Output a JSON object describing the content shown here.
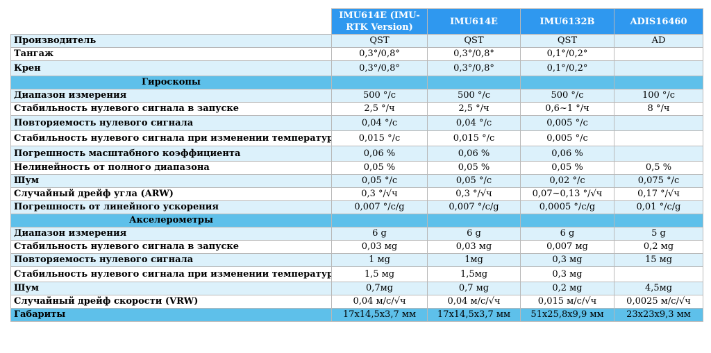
{
  "header": [
    "IMU614E (IMU-RTK Version)",
    "IMU614E",
    "IMU6132B",
    "ADIS16460"
  ],
  "rows": [
    {
      "label": "Производитель",
      "values": [
        "QST",
        "QST",
        "QST",
        "AD"
      ],
      "style": "odd",
      "h": "h20"
    },
    {
      "label": "Тангаж",
      "values": [
        "0,3°/0,8°",
        "0,3°/0,8°",
        "0,1°/0,2°",
        ""
      ],
      "style": "even",
      "h": "h20"
    },
    {
      "label": "Крен",
      "values": [
        "0,3°/0,8°",
        "0,3°/0,8°",
        "0,1°/0,2°",
        ""
      ],
      "style": "odd",
      "h": "h24"
    },
    {
      "label": "Гироскопы",
      "values": [
        "",
        "",
        "",
        ""
      ],
      "style": "section",
      "h": "h20"
    },
    {
      "label": "Диапазон измерения",
      "values": [
        "500 °/с",
        "500 °/с",
        "500 °/с",
        "100 °/с"
      ],
      "style": "odd",
      "h": "h20"
    },
    {
      "label": "Стабильность нулевого сигнала в запуске",
      "values": [
        "2,5 °/ч",
        "2,5 °/ч",
        "0,6~1 °/ч",
        "8 °/ч"
      ],
      "style": "even",
      "h": "h20"
    },
    {
      "label": "Повторяемость нулевого сигнала",
      "values": [
        "0,04 °/с",
        "0,04 °/с",
        "0,005 °/с",
        ""
      ],
      "style": "odd",
      "h": "h24"
    },
    {
      "label": "Стабильность нулевого сигнала при изменении температуры",
      "values": [
        "0,015 °/с",
        "0,015 °/с",
        "0,005 °/с",
        ""
      ],
      "style": "even",
      "h": "h24"
    },
    {
      "label": "Погрешность масштабного коэффициента",
      "values": [
        "0,06 %",
        "0,06 %",
        "0,06 %",
        ""
      ],
      "style": "odd",
      "h": "h24"
    },
    {
      "label": "Нелинейность от полного диапазона",
      "values": [
        "0,05 %",
        "0,05 %",
        "0,05 %",
        "0,5 %"
      ],
      "style": "even",
      "h": "h20"
    },
    {
      "label": "Шум",
      "values": [
        "0,05 °/с",
        "0,05 °/с",
        "0,02 °/с",
        "0,075 °/с"
      ],
      "style": "odd",
      "h": "h20"
    },
    {
      "label": "Случайный дрейф угла (ARW)",
      "values": [
        "0,3 °/√ч",
        "0,3 °/√ч",
        "0,07~0,13 °/√ч",
        "0,17 °/√ч"
      ],
      "style": "even",
      "h": "h20"
    },
    {
      "label": "Погрешность от линейного ускорения",
      "values": [
        "0,007 °/с/g",
        "0,007 °/с/g",
        "0,0005 °/с/g",
        "0,01 °/с/g"
      ],
      "style": "odd",
      "h": "h20"
    },
    {
      "label": "Акселерометры",
      "values": [
        "",
        "",
        "",
        ""
      ],
      "style": "section",
      "h": "h20"
    },
    {
      "label": "Диапазон измерения",
      "values": [
        "6 g",
        "6 g",
        "6 g",
        "5 g"
      ],
      "style": "odd",
      "h": "h20"
    },
    {
      "label": "Стабильность нулевого сигнала в запуске",
      "values": [
        "0,03 мg",
        "0,03 мg",
        "0,007 мg",
        "0,2 мg"
      ],
      "style": "even",
      "h": "h20"
    },
    {
      "label": "Повторяемость нулевого сигнала",
      "values": [
        "1 мg",
        "1мg",
        "0,3 мg",
        "15 мg"
      ],
      "style": "odd",
      "h": "h20"
    },
    {
      "label": "Стабильность нулевого сигнала при изменении температуры",
      "values": [
        "1,5 мg",
        "1,5мg",
        "0,3 мg",
        ""
      ],
      "style": "even",
      "h": "h24"
    },
    {
      "label": "Шум",
      "values": [
        "0,7мg",
        "0,7 мg",
        "0,2 мg",
        "4,5мg"
      ],
      "style": "odd",
      "h": "h20"
    },
    {
      "label": "Случайный дрейф скорости (VRW)",
      "values": [
        "0,04 м/с/√ч",
        "0,04 м/с/√ч",
        "0,015 м/с/√ч",
        "0,0025 м/с/√ч"
      ],
      "style": "even",
      "h": "h20"
    },
    {
      "label": "Габариты",
      "values": [
        "17х14,5х3,7 мм",
        "17х14,5х3,7 мм",
        "51х25,8х9,9 мм",
        "23х23х9,3 мм"
      ],
      "style": "last",
      "h": "h20"
    }
  ]
}
